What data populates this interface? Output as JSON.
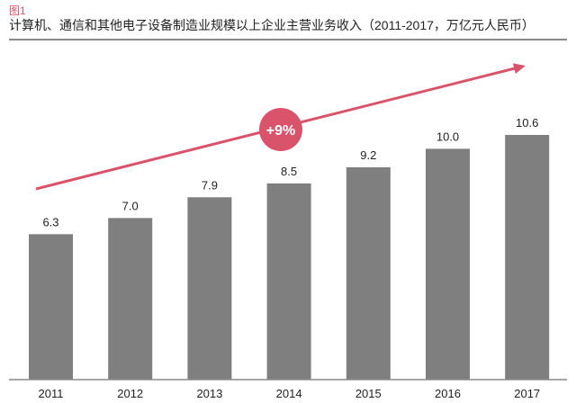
{
  "figure_label": "图1",
  "chart_data": {
    "type": "bar",
    "title": "计算机、通信和其他电子设备制造业规模以上企业主营业务收入（2011-2017，万亿元人民币）",
    "categories": [
      "2011",
      "2012",
      "2013",
      "2014",
      "2015",
      "2016",
      "2017"
    ],
    "values": [
      6.3,
      7.0,
      7.9,
      8.5,
      9.2,
      10.0,
      10.6
    ],
    "value_labels": [
      "6.3",
      "7.0",
      "7.9",
      "8.5",
      "9.2",
      "10.0",
      "10.6"
    ],
    "xlabel": "",
    "ylabel": "",
    "ylim": [
      0,
      10.6
    ],
    "grid": false,
    "annotation": {
      "text": "+9%",
      "type": "growth-arrow"
    },
    "colors": {
      "bar": "#7f7f7f",
      "accent": "#d9536a",
      "axis": "#8a8a8a"
    }
  }
}
